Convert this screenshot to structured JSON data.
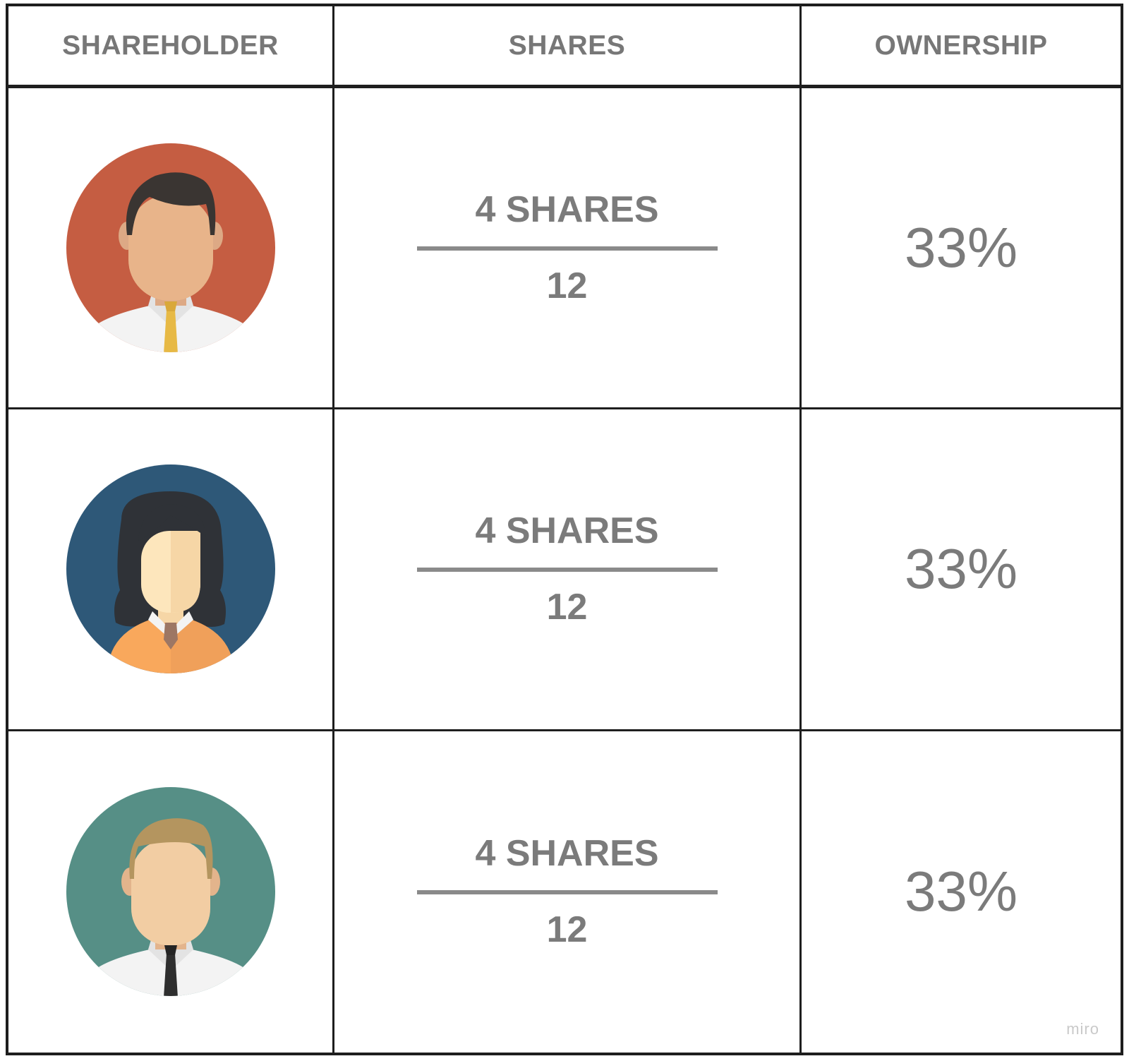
{
  "headers": {
    "shareholder": "SHAREHOLDER",
    "shares": "SHARES",
    "ownership": "OWNERSHIP"
  },
  "rows": [
    {
      "avatar": {
        "icon": "man-with-yellow-tie-avatar-icon",
        "background": "#C55D42"
      },
      "shares_numerator": "4 SHARES",
      "shares_denominator": "12",
      "ownership": "33%"
    },
    {
      "avatar": {
        "icon": "woman-avatar-icon",
        "background": "#2E5878"
      },
      "shares_numerator": "4 SHARES",
      "shares_denominator": "12",
      "ownership": "33%"
    },
    {
      "avatar": {
        "icon": "blond-man-with-black-tie-avatar-icon",
        "background": "#568F86"
      },
      "shares_numerator": "4 SHARES",
      "shares_denominator": "12",
      "ownership": "33%"
    }
  ],
  "watermark": "miro"
}
